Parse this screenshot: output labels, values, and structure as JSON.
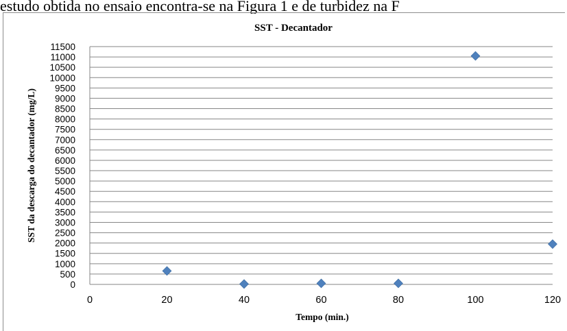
{
  "document": {
    "text_above": "estudo obtida no ensaio encontra-se na Figura 1 e de turbidez na F"
  },
  "chart_data": {
    "type": "scatter",
    "title": "SST - Decantador",
    "xlabel": "Tempo (min.)",
    "ylabel": "SST da descarga do decantador (mg/L)",
    "xlim": [
      0,
      120
    ],
    "ylim": [
      0,
      11500
    ],
    "xticks": [
      0,
      20,
      40,
      60,
      80,
      100,
      120
    ],
    "yticks": [
      0,
      500,
      1000,
      1500,
      2000,
      2500,
      3000,
      3500,
      4000,
      4500,
      5000,
      5500,
      6000,
      6500,
      7000,
      7500,
      8000,
      8500,
      9000,
      9500,
      10000,
      10500,
      11000,
      11500
    ],
    "grid": "horizontal",
    "marker": "diamond",
    "color": "#4F81BD",
    "series": [
      {
        "x": [
          20,
          40,
          60,
          80,
          100,
          120
        ],
        "y": [
          650,
          20,
          50,
          50,
          11050,
          1950
        ]
      }
    ]
  }
}
